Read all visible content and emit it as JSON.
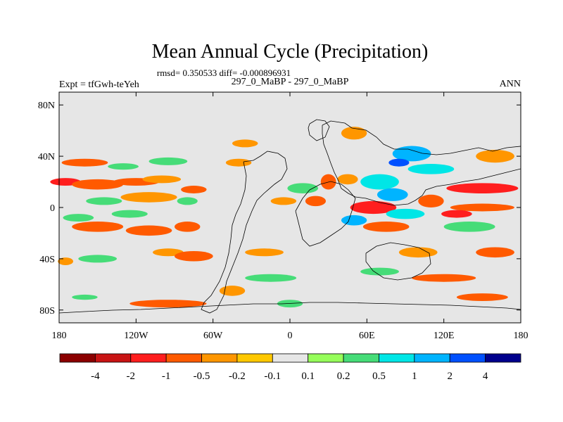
{
  "chart_data": {
    "type": "heatmap",
    "title": "Mean Annual Cycle (Precipitation)",
    "stats_line": "rmsd= 0.350533 diff= -0.000896931",
    "left_label": "Expt = tfGwh-teYeh",
    "center_label": "297_0_MaBP - 297_0_MaBP",
    "right_label": "ANN",
    "xlim": [
      -180,
      180
    ],
    "ylim": [
      -90,
      90
    ],
    "x_ticks": [
      {
        "value": -180,
        "label": "180"
      },
      {
        "value": -120,
        "label": "120W"
      },
      {
        "value": -60,
        "label": "60W"
      },
      {
        "value": 0,
        "label": "0"
      },
      {
        "value": 60,
        "label": "60E"
      },
      {
        "value": 120,
        "label": "120E"
      },
      {
        "value": 180,
        "label": "180"
      }
    ],
    "y_ticks": [
      {
        "value": 80,
        "label": "80N"
      },
      {
        "value": 40,
        "label": "40N"
      },
      {
        "value": 0,
        "label": "0"
      },
      {
        "value": -40,
        "label": "40S"
      },
      {
        "value": -80,
        "label": "80S"
      }
    ],
    "colorbar": {
      "colors": [
        "#8b0000",
        "#c81414",
        "#ff1e1e",
        "#ff5a00",
        "#ff9600",
        "#ffc800",
        "#e6e6e6",
        "#96ff5a",
        "#46dc78",
        "#00e6e6",
        "#00b4ff",
        "#0050ff",
        "#00008c"
      ],
      "labels": [
        "-4",
        "-2",
        "-1",
        "-0.5",
        "-0.2",
        "-0.1",
        "0.1",
        "0.2",
        "0.5",
        "1",
        "2",
        "4"
      ]
    },
    "contour_patches": [
      {
        "lon": -175,
        "lat": 20,
        "rx": 12,
        "ry": 3,
        "level": "-1"
      },
      {
        "lon": -150,
        "lat": 18,
        "rx": 20,
        "ry": 4,
        "level": "-0.5"
      },
      {
        "lon": -120,
        "lat": 20,
        "rx": 18,
        "ry": 3,
        "level": "-0.5"
      },
      {
        "lon": -100,
        "lat": 22,
        "rx": 15,
        "ry": 3,
        "level": "-0.2"
      },
      {
        "lon": -160,
        "lat": 35,
        "rx": 18,
        "ry": 3,
        "level": "-0.5"
      },
      {
        "lon": -130,
        "lat": 32,
        "rx": 12,
        "ry": 2.5,
        "level": "0.2"
      },
      {
        "lon": -95,
        "lat": 36,
        "rx": 15,
        "ry": 3,
        "level": "0.2"
      },
      {
        "lon": -145,
        "lat": 5,
        "rx": 14,
        "ry": 3,
        "level": "0.2"
      },
      {
        "lon": -110,
        "lat": 8,
        "rx": 22,
        "ry": 4,
        "level": "-0.2"
      },
      {
        "lon": -75,
        "lat": 14,
        "rx": 10,
        "ry": 3,
        "level": "-0.5"
      },
      {
        "lon": -150,
        "lat": -15,
        "rx": 20,
        "ry": 4,
        "level": "-0.5"
      },
      {
        "lon": -110,
        "lat": -18,
        "rx": 18,
        "ry": 4,
        "level": "-0.5"
      },
      {
        "lon": -80,
        "lat": -15,
        "rx": 10,
        "ry": 4,
        "level": "-0.5"
      },
      {
        "lon": -165,
        "lat": -8,
        "rx": 12,
        "ry": 3,
        "level": "0.2"
      },
      {
        "lon": -125,
        "lat": -5,
        "rx": 14,
        "ry": 3,
        "level": "0.2"
      },
      {
        "lon": -150,
        "lat": -40,
        "rx": 15,
        "ry": 3,
        "level": "0.2"
      },
      {
        "lon": -175,
        "lat": -42,
        "rx": 6,
        "ry": 3,
        "level": "-0.2"
      },
      {
        "lon": -95,
        "lat": -35,
        "rx": 12,
        "ry": 3,
        "level": "-0.2"
      },
      {
        "lon": -75,
        "lat": -38,
        "rx": 15,
        "ry": 4,
        "level": "-0.5"
      },
      {
        "lon": -95,
        "lat": -75,
        "rx": 30,
        "ry": 3,
        "level": "-0.5"
      },
      {
        "lon": -45,
        "lat": -65,
        "rx": 10,
        "ry": 4,
        "level": "-0.2"
      },
      {
        "lon": -15,
        "lat": -55,
        "rx": 20,
        "ry": 3,
        "level": "0.2"
      },
      {
        "lon": -20,
        "lat": -35,
        "rx": 15,
        "ry": 3,
        "level": "-0.2"
      },
      {
        "lon": -40,
        "lat": 35,
        "rx": 10,
        "ry": 3,
        "level": "-0.2"
      },
      {
        "lon": -35,
        "lat": 50,
        "rx": 10,
        "ry": 3,
        "level": "-0.2"
      },
      {
        "lon": 10,
        "lat": 15,
        "rx": 12,
        "ry": 4,
        "level": "0.2"
      },
      {
        "lon": 20,
        "lat": 5,
        "rx": 8,
        "ry": 4,
        "level": "-0.5"
      },
      {
        "lon": 30,
        "lat": 20,
        "rx": 6,
        "ry": 6,
        "level": "-0.5"
      },
      {
        "lon": 45,
        "lat": 22,
        "rx": 8,
        "ry": 4,
        "level": "-0.2"
      },
      {
        "lon": 50,
        "lat": 58,
        "rx": 10,
        "ry": 5,
        "level": "-0.2"
      },
      {
        "lon": 70,
        "lat": 20,
        "rx": 15,
        "ry": 6,
        "level": "0.5"
      },
      {
        "lon": 80,
        "lat": 10,
        "rx": 12,
        "ry": 5,
        "level": "1"
      },
      {
        "lon": 65,
        "lat": 0,
        "rx": 18,
        "ry": 5,
        "level": "-1"
      },
      {
        "lon": 90,
        "lat": -5,
        "rx": 15,
        "ry": 4,
        "level": "0.5"
      },
      {
        "lon": 50,
        "lat": -10,
        "rx": 10,
        "ry": 4,
        "level": "1"
      },
      {
        "lon": 95,
        "lat": 42,
        "rx": 15,
        "ry": 6,
        "level": "1"
      },
      {
        "lon": 85,
        "lat": 35,
        "rx": 8,
        "ry": 3,
        "level": "2"
      },
      {
        "lon": 110,
        "lat": 30,
        "rx": 18,
        "ry": 4,
        "level": "0.5"
      },
      {
        "lon": 160,
        "lat": 40,
        "rx": 15,
        "ry": 5,
        "level": "-0.2"
      },
      {
        "lon": 150,
        "lat": 15,
        "rx": 28,
        "ry": 4,
        "level": "-1"
      },
      {
        "lon": 150,
        "lat": 0,
        "rx": 25,
        "ry": 3,
        "level": "-0.5"
      },
      {
        "lon": 130,
        "lat": -5,
        "rx": 12,
        "ry": 3,
        "level": "-1"
      },
      {
        "lon": 110,
        "lat": 5,
        "rx": 10,
        "ry": 5,
        "level": "-0.5"
      },
      {
        "lon": 140,
        "lat": -15,
        "rx": 20,
        "ry": 4,
        "level": "0.2"
      },
      {
        "lon": 75,
        "lat": -15,
        "rx": 18,
        "ry": 4,
        "level": "-0.5"
      },
      {
        "lon": 100,
        "lat": -35,
        "rx": 15,
        "ry": 4,
        "level": "-0.2"
      },
      {
        "lon": 160,
        "lat": -35,
        "rx": 15,
        "ry": 4,
        "level": "-0.5"
      },
      {
        "lon": 120,
        "lat": -55,
        "rx": 25,
        "ry": 3,
        "level": "-0.5"
      },
      {
        "lon": 70,
        "lat": -50,
        "rx": 15,
        "ry": 3,
        "level": "0.2"
      },
      {
        "lon": 150,
        "lat": -70,
        "rx": 20,
        "ry": 3,
        "level": "-0.5"
      },
      {
        "lon": 0,
        "lat": -75,
        "rx": 10,
        "ry": 3,
        "level": "0.2"
      },
      {
        "lon": -160,
        "lat": -70,
        "rx": 10,
        "ry": 2,
        "level": "0.2"
      },
      {
        "lon": -80,
        "lat": 5,
        "rx": 8,
        "ry": 3,
        "level": "0.2"
      },
      {
        "lon": -5,
        "lat": 5,
        "rx": 10,
        "ry": 3,
        "level": "-0.2"
      }
    ]
  }
}
